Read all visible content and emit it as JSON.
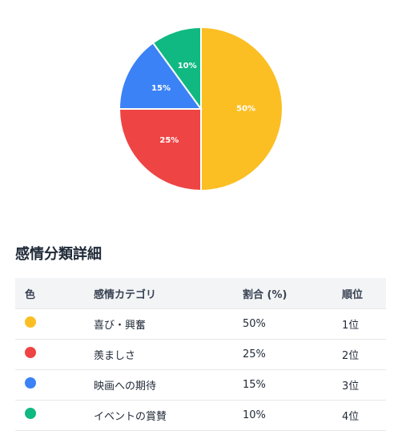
{
  "chart_data": {
    "type": "pie",
    "slices": [
      {
        "label": "喜び・興奮",
        "value": 50,
        "display": "50%",
        "color": "#fbbf24"
      },
      {
        "label": "羨ましさ",
        "value": 25,
        "display": "25%",
        "color": "#ef4444"
      },
      {
        "label": "映画への期待",
        "value": 15,
        "display": "15%",
        "color": "#3b82f6"
      },
      {
        "label": "イベントの賞賛",
        "value": 10,
        "display": "10%",
        "color": "#10b981"
      }
    ]
  },
  "section": {
    "title": "感情分類詳細"
  },
  "table": {
    "headers": {
      "color": "色",
      "category": "感情カテゴリ",
      "ratio": "割合 (%)",
      "rank": "順位"
    },
    "rows": [
      {
        "color": "#fbbf24",
        "category": "喜び・興奮",
        "ratio": "50%",
        "rank": "1位"
      },
      {
        "color": "#ef4444",
        "category": "羨ましさ",
        "ratio": "25%",
        "rank": "2位"
      },
      {
        "color": "#3b82f6",
        "category": "映画への期待",
        "ratio": "15%",
        "rank": "3位"
      },
      {
        "color": "#10b981",
        "category": "イベントの賞賛",
        "ratio": "10%",
        "rank": "4位"
      }
    ]
  }
}
